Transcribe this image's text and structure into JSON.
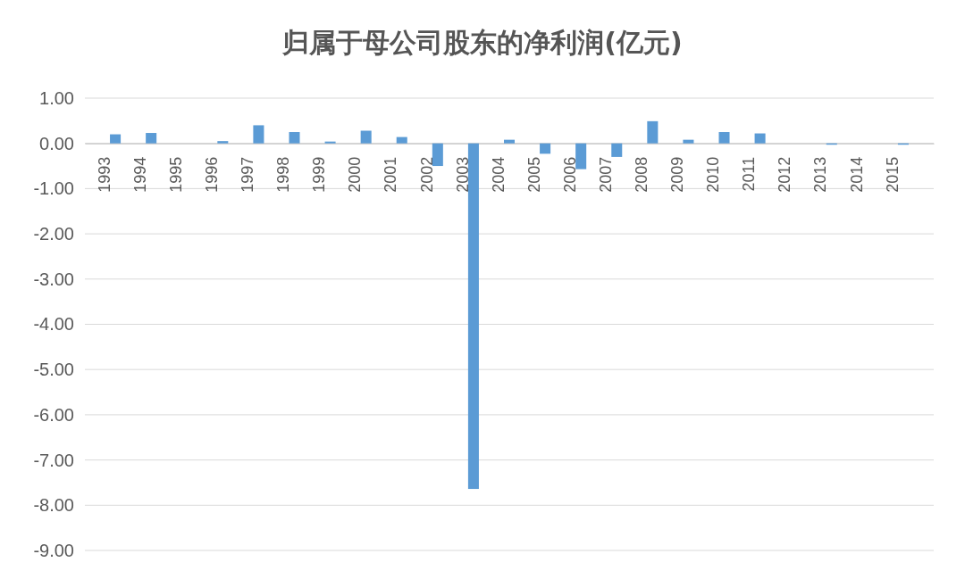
{
  "chart_data": {
    "type": "bar",
    "title": "归属于母公司股东的净利润(亿元)",
    "categories": [
      "1993",
      "1994",
      "1995",
      "1996",
      "1997",
      "1998",
      "1999",
      "2000",
      "2001",
      "2002",
      "2003",
      "2004",
      "2005",
      "2006",
      "2007",
      "2008",
      "2009",
      "2010",
      "2011",
      "2012",
      "2013",
      "2014",
      "2015"
    ],
    "values": [
      0.2,
      0.23,
      0,
      0.05,
      0.4,
      0.25,
      0.04,
      0.28,
      0.14,
      -0.5,
      -7.64,
      0.08,
      -0.23,
      -0.57,
      -0.3,
      0.49,
      0.08,
      0.25,
      0.22,
      0,
      -0.03,
      0,
      -0.03
    ],
    "color": "#5b9bd5",
    "ylim": [
      -9,
      1
    ],
    "yticks": [
      {
        "value": 1,
        "label": "1.00"
      },
      {
        "value": 0,
        "label": "0.00"
      },
      {
        "value": -1,
        "label": "-1.00"
      },
      {
        "value": -2,
        "label": "-2.00"
      },
      {
        "value": -3,
        "label": "-3.00"
      },
      {
        "value": -4,
        "label": "-4.00"
      },
      {
        "value": -5,
        "label": "-5.00"
      },
      {
        "value": -6,
        "label": "-6.00"
      },
      {
        "value": -7,
        "label": "-7.00"
      },
      {
        "value": -8,
        "label": "-8.00"
      },
      {
        "value": -9,
        "label": "-9.00"
      }
    ],
    "grid": "y"
  }
}
